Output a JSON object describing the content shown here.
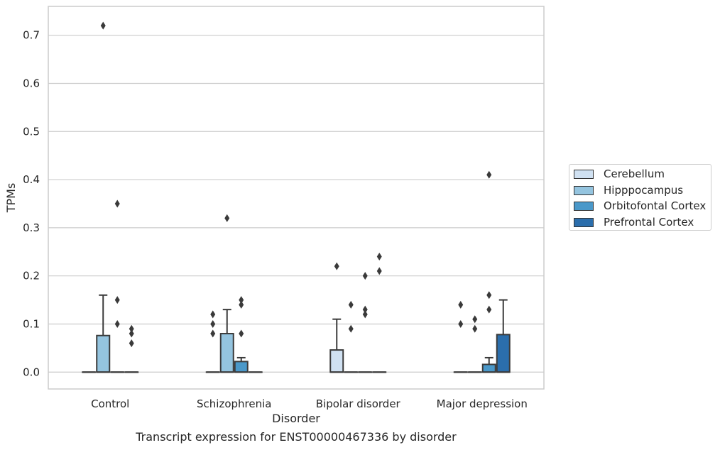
{
  "chart_data": {
    "type": "box",
    "xlabel": "Disorder",
    "ylabel": "TPMs",
    "ylim": [
      -0.035,
      0.76
    ],
    "yticks": [
      "0.0",
      "0.1",
      "0.2",
      "0.3",
      "0.4",
      "0.5",
      "0.6",
      "0.7"
    ],
    "grid": "horizontal",
    "legend_position": "right",
    "categories": [
      "Control",
      "Schizophrenia",
      "Bipolar disorder",
      "Major depression"
    ],
    "series": [
      {
        "name": "Cerebellum",
        "color": "#d0e1f2",
        "boxes": [
          {
            "q1": 0,
            "median": 0,
            "q3": 0,
            "whisker_low": 0,
            "whisker_high": 0,
            "outliers": []
          },
          {
            "q1": 0,
            "median": 0,
            "q3": 0,
            "whisker_low": 0,
            "whisker_high": 0,
            "outliers": [
              0.08,
              0.1,
              0.12
            ]
          },
          {
            "q1": 0,
            "median": 0,
            "q3": 0.046,
            "whisker_low": 0,
            "whisker_high": 0.11,
            "outliers": [
              0.22
            ]
          },
          {
            "q1": 0,
            "median": 0,
            "q3": 0,
            "whisker_low": 0,
            "whisker_high": 0,
            "outliers": [
              0.1,
              0.14
            ]
          }
        ]
      },
      {
        "name": "Hipppocampus",
        "color": "#94c4df",
        "boxes": [
          {
            "q1": 0,
            "median": 0,
            "q3": 0.076,
            "whisker_low": 0,
            "whisker_high": 0.16,
            "outliers": [
              0.72
            ]
          },
          {
            "q1": 0,
            "median": 0,
            "q3": 0.08,
            "whisker_low": 0,
            "whisker_high": 0.13,
            "outliers": [
              0.32
            ]
          },
          {
            "q1": 0,
            "median": 0,
            "q3": 0,
            "whisker_low": 0,
            "whisker_high": 0,
            "outliers": [
              0.09,
              0.14
            ]
          },
          {
            "q1": 0,
            "median": 0,
            "q3": 0,
            "whisker_low": 0,
            "whisker_high": 0,
            "outliers": [
              0.09,
              0.11
            ]
          }
        ]
      },
      {
        "name": "Orbitofontal Cortex",
        "color": "#4a98c9",
        "boxes": [
          {
            "q1": 0,
            "median": 0,
            "q3": 0,
            "whisker_low": 0,
            "whisker_high": 0,
            "outliers": [
              0.1,
              0.15,
              0.35
            ]
          },
          {
            "q1": 0,
            "median": 0,
            "q3": 0.022,
            "whisker_low": 0,
            "whisker_high": 0.03,
            "outliers": [
              0.08,
              0.14,
              0.15
            ]
          },
          {
            "q1": 0,
            "median": 0,
            "q3": 0,
            "whisker_low": 0,
            "whisker_high": 0,
            "outliers": [
              0.12,
              0.13,
              0.2
            ]
          },
          {
            "q1": 0,
            "median": 0,
            "q3": 0.016,
            "whisker_low": 0,
            "whisker_high": 0.03,
            "outliers": [
              0.13,
              0.16,
              0.41
            ]
          }
        ]
      },
      {
        "name": "Prefrontal Cortex",
        "color": "#2b6eac",
        "boxes": [
          {
            "q1": 0,
            "median": 0,
            "q3": 0,
            "whisker_low": 0,
            "whisker_high": 0,
            "outliers": [
              0.06,
              0.08,
              0.09
            ]
          },
          {
            "q1": 0,
            "median": 0,
            "q3": 0,
            "whisker_low": 0,
            "whisker_high": 0,
            "outliers": []
          },
          {
            "q1": 0,
            "median": 0,
            "q3": 0,
            "whisker_low": 0,
            "whisker_high": 0,
            "outliers": [
              0.21,
              0.24
            ]
          },
          {
            "q1": 0,
            "median": 0,
            "q3": 0.078,
            "whisker_low": 0,
            "whisker_high": 0.15,
            "outliers": []
          }
        ]
      }
    ]
  },
  "caption": "Transcript expression for ENST00000467336 by disorder"
}
